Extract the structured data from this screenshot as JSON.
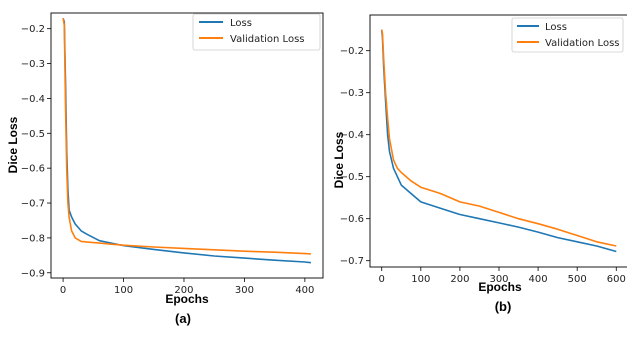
{
  "chart_data": [
    {
      "type": "line",
      "panel_label": "(a)",
      "xlabel": "Epochs",
      "ylabel": "Dice Loss",
      "xlim": [
        -20,
        430
      ],
      "ylim": [
        -0.915,
        -0.155
      ],
      "xticks": [
        0,
        100,
        200,
        300,
        400
      ],
      "yticks": [
        -0.2,
        -0.3,
        -0.4,
        -0.5,
        -0.6,
        -0.7,
        -0.8,
        -0.9
      ],
      "ytick_labels": [
        "−0.2",
        "−0.3",
        "−0.4",
        "−0.5",
        "−0.6",
        "−0.7",
        "−0.8",
        "−0.9"
      ],
      "legend_position": "top-right",
      "grid": false,
      "series": [
        {
          "name": "Loss",
          "color": "#1f77b4",
          "x": [
            0,
            2,
            4,
            6,
            8,
            10,
            14,
            20,
            30,
            40,
            60,
            80,
            100,
            150,
            200,
            250,
            300,
            350,
            400,
            410
          ],
          "y": [
            -0.17,
            -0.18,
            -0.35,
            -0.55,
            -0.66,
            -0.72,
            -0.74,
            -0.76,
            -0.78,
            -0.79,
            -0.808,
            -0.815,
            -0.822,
            -0.833,
            -0.843,
            -0.852,
            -0.858,
            -0.864,
            -0.869,
            -0.871
          ]
        },
        {
          "name": "Validation Loss",
          "color": "#ff7f0e",
          "x": [
            0,
            2,
            4,
            6,
            8,
            10,
            14,
            20,
            30,
            40,
            60,
            80,
            100,
            150,
            200,
            250,
            300,
            350,
            400,
            410
          ],
          "y": [
            -0.17,
            -0.19,
            -0.42,
            -0.6,
            -0.7,
            -0.74,
            -0.78,
            -0.8,
            -0.81,
            -0.812,
            -0.815,
            -0.818,
            -0.821,
            -0.826,
            -0.83,
            -0.834,
            -0.838,
            -0.841,
            -0.845,
            -0.846
          ]
        }
      ]
    },
    {
      "type": "line",
      "panel_label": "(b)",
      "xlabel": "Epochs",
      "ylabel": "Dice Loss",
      "xlim": [
        -30,
        630
      ],
      "ylim": [
        -0.715,
        -0.115
      ],
      "xticks": [
        0,
        100,
        200,
        300,
        400,
        500,
        600
      ],
      "yticks": [
        -0.2,
        -0.3,
        -0.4,
        -0.5,
        -0.6,
        -0.7
      ],
      "ytick_labels": [
        "−0.2",
        "−0.3",
        "−0.4",
        "−0.5",
        "−0.6",
        "−0.7"
      ],
      "legend_position": "top-right",
      "grid": false,
      "series": [
        {
          "name": "Loss",
          "color": "#1f77b4",
          "x": [
            0,
            2,
            5,
            10,
            15,
            20,
            30,
            40,
            50,
            75,
            100,
            150,
            200,
            250,
            300,
            350,
            400,
            450,
            500,
            550,
            600
          ],
          "y": [
            -0.15,
            -0.17,
            -0.24,
            -0.32,
            -0.4,
            -0.44,
            -0.48,
            -0.5,
            -0.52,
            -0.54,
            -0.56,
            -0.575,
            -0.59,
            -0.6,
            -0.61,
            -0.62,
            -0.632,
            -0.645,
            -0.655,
            -0.665,
            -0.678
          ]
        },
        {
          "name": "Validation Loss",
          "color": "#ff7f0e",
          "x": [
            0,
            2,
            5,
            10,
            15,
            20,
            30,
            40,
            50,
            75,
            100,
            150,
            200,
            250,
            300,
            350,
            400,
            450,
            500,
            550,
            600
          ],
          "y": [
            -0.15,
            -0.16,
            -0.22,
            -0.3,
            -0.36,
            -0.41,
            -0.46,
            -0.48,
            -0.49,
            -0.51,
            -0.525,
            -0.54,
            -0.56,
            -0.57,
            -0.585,
            -0.6,
            -0.612,
            -0.625,
            -0.64,
            -0.655,
            -0.665
          ]
        }
      ]
    }
  ]
}
